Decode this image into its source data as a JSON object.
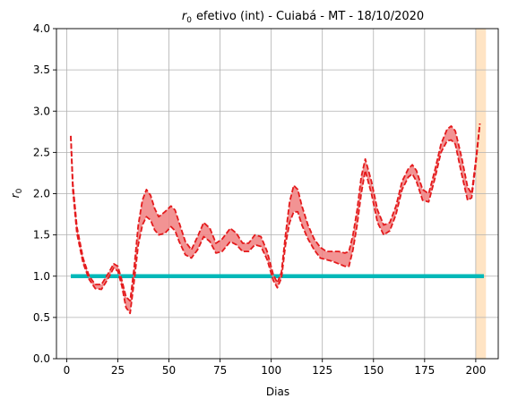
{
  "chart_data": {
    "type": "line",
    "title_main": "efetivo (int) - Cuiabá - MT - 18/10/2020",
    "title_symbol": "r",
    "title_sub": "0",
    "xlabel": "Dias",
    "ylabel_symbol": "r",
    "ylabel_sub": "0",
    "xlim": [
      -5,
      211
    ],
    "ylim": [
      0,
      4
    ],
    "xticks": [
      0,
      25,
      50,
      75,
      100,
      125,
      150,
      175,
      200
    ],
    "yticks": [
      0.0,
      0.5,
      1.0,
      1.5,
      2.0,
      2.5,
      3.0,
      3.5,
      4.0
    ],
    "xtick_labels": [
      "0",
      "25",
      "50",
      "75",
      "100",
      "125",
      "150",
      "175",
      "200"
    ],
    "ytick_labels": [
      "0.0",
      "0.5",
      "1.0",
      "1.5",
      "2.0",
      "2.5",
      "3.0",
      "3.5",
      "4.0"
    ],
    "grid": true,
    "highlight_band": {
      "x": [
        200,
        205
      ],
      "color": "#ffe4c4"
    },
    "reference_line": {
      "y": 1.0,
      "x": [
        2,
        204
      ],
      "color": "#00b8b8"
    },
    "band_color": "#f08080",
    "line_color": "#e41a1c",
    "x": [
      2,
      3,
      5,
      8,
      11,
      14,
      17,
      20,
      23,
      25,
      27,
      29,
      31,
      33,
      35,
      37,
      39,
      41,
      43,
      45,
      48,
      51,
      53,
      55,
      58,
      61,
      64,
      67,
      70,
      73,
      76,
      80,
      83,
      86,
      89,
      92,
      95,
      98,
      101,
      103,
      105,
      107,
      109,
      111,
      113,
      115,
      118,
      121,
      124,
      127,
      130,
      133,
      136,
      138,
      140,
      142,
      144,
      146,
      149,
      152,
      155,
      158,
      161,
      164,
      167,
      169,
      171,
      174,
      177,
      180,
      183,
      186,
      188,
      190,
      193,
      196,
      198,
      200,
      202
    ],
    "upper": [
      2.7,
      2.12,
      1.6,
      1.22,
      1.0,
      0.9,
      0.9,
      1.02,
      1.15,
      1.12,
      0.95,
      0.75,
      0.7,
      1.1,
      1.62,
      1.92,
      2.05,
      1.98,
      1.82,
      1.72,
      1.78,
      1.85,
      1.8,
      1.65,
      1.42,
      1.32,
      1.48,
      1.65,
      1.58,
      1.4,
      1.45,
      1.58,
      1.52,
      1.4,
      1.4,
      1.5,
      1.48,
      1.3,
      1.02,
      0.92,
      1.05,
      1.5,
      1.9,
      2.1,
      2.05,
      1.85,
      1.62,
      1.45,
      1.35,
      1.3,
      1.3,
      1.3,
      1.28,
      1.3,
      1.5,
      1.8,
      2.2,
      2.42,
      2.15,
      1.8,
      1.62,
      1.65,
      1.85,
      2.15,
      2.3,
      2.35,
      2.28,
      2.05,
      2.0,
      2.28,
      2.6,
      2.78,
      2.82,
      2.76,
      2.45,
      2.08,
      2.0,
      2.4,
      2.85
    ],
    "lower": [
      2.7,
      2.04,
      1.52,
      1.16,
      0.96,
      0.85,
      0.84,
      0.96,
      1.1,
      1.06,
      0.88,
      0.62,
      0.55,
      0.94,
      1.38,
      1.62,
      1.72,
      1.68,
      1.56,
      1.5,
      1.52,
      1.6,
      1.55,
      1.42,
      1.26,
      1.22,
      1.32,
      1.48,
      1.42,
      1.28,
      1.3,
      1.42,
      1.38,
      1.3,
      1.3,
      1.38,
      1.36,
      1.2,
      0.95,
      0.86,
      0.98,
      1.38,
      1.65,
      1.78,
      1.78,
      1.62,
      1.45,
      1.32,
      1.22,
      1.2,
      1.18,
      1.15,
      1.12,
      1.12,
      1.32,
      1.62,
      2.0,
      2.28,
      2.0,
      1.65,
      1.5,
      1.55,
      1.75,
      2.05,
      2.2,
      2.24,
      2.15,
      1.92,
      1.9,
      2.18,
      2.5,
      2.64,
      2.65,
      2.6,
      2.25,
      1.92,
      1.95,
      2.35,
      2.85
    ]
  }
}
